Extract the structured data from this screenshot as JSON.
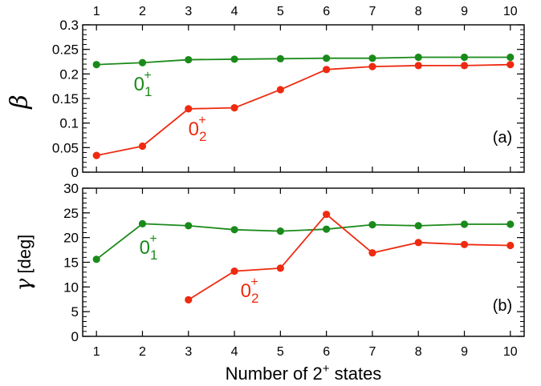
{
  "chart_data": [
    {
      "type": "line",
      "panel_tag": "(a)",
      "ylabel": "β",
      "ylim": [
        0,
        0.3
      ],
      "ytick_labels": [
        "0",
        "0.05",
        "0.1",
        "0.15",
        "0.2",
        "0.25",
        "0.3"
      ],
      "xlim": [
        0.7,
        10.3
      ],
      "x": [
        1,
        2,
        3,
        4,
        5,
        6,
        7,
        8,
        9,
        10
      ],
      "xtick_labels": [
        "1",
        "2",
        "3",
        "4",
        "5",
        "6",
        "7",
        "8",
        "9",
        "10"
      ],
      "series": [
        {
          "label_main": "0",
          "label_sub": "1",
          "label_sup": "+",
          "color": "#1a8a1a",
          "x": [
            1,
            2,
            3,
            4,
            5,
            6,
            7,
            8,
            9,
            10
          ],
          "values": [
            0.219,
            0.223,
            0.229,
            0.23,
            0.231,
            0.232,
            0.232,
            0.234,
            0.234,
            0.234
          ]
        },
        {
          "label_main": "0",
          "label_sub": "2",
          "label_sup": "+",
          "color": "#ee2a10",
          "x": [
            1,
            2,
            3,
            4,
            5,
            6,
            7,
            8,
            9,
            10
          ],
          "values": [
            0.034,
            0.053,
            0.129,
            0.131,
            0.168,
            0.209,
            0.215,
            0.217,
            0.217,
            0.219
          ]
        }
      ],
      "grid": false
    },
    {
      "type": "line",
      "panel_tag": "(b)",
      "ylabel_symbol": "γ",
      "ylabel_unit": " [deg]",
      "ylim": [
        0,
        30
      ],
      "ytick_labels": [
        "0",
        "5",
        "10",
        "15",
        "20",
        "25",
        "30"
      ],
      "xlim": [
        0.7,
        10.3
      ],
      "x": [
        1,
        2,
        3,
        4,
        5,
        6,
        7,
        8,
        9,
        10
      ],
      "xtick_labels": [
        "1",
        "2",
        "3",
        "4",
        "5",
        "6",
        "7",
        "8",
        "9",
        "10"
      ],
      "xlabel_main": "Number of 2",
      "xlabel_sup": "+",
      "xlabel_tail": " states",
      "series": [
        {
          "label_main": "0",
          "label_sub": "1",
          "label_sup": "+",
          "color": "#1a8a1a",
          "x": [
            1,
            2,
            3,
            4,
            5,
            6,
            7,
            8,
            9,
            10
          ],
          "values": [
            15.6,
            22.8,
            22.4,
            21.6,
            21.3,
            21.7,
            22.6,
            22.4,
            22.7,
            22.7
          ]
        },
        {
          "label_main": "0",
          "label_sub": "2",
          "label_sup": "+",
          "color": "#ee2a10",
          "x": [
            3,
            4,
            5,
            6,
            7,
            8,
            9,
            10
          ],
          "values": [
            7.4,
            13.2,
            13.8,
            24.7,
            16.9,
            19.0,
            18.6,
            18.4
          ]
        }
      ],
      "grid": false
    }
  ]
}
